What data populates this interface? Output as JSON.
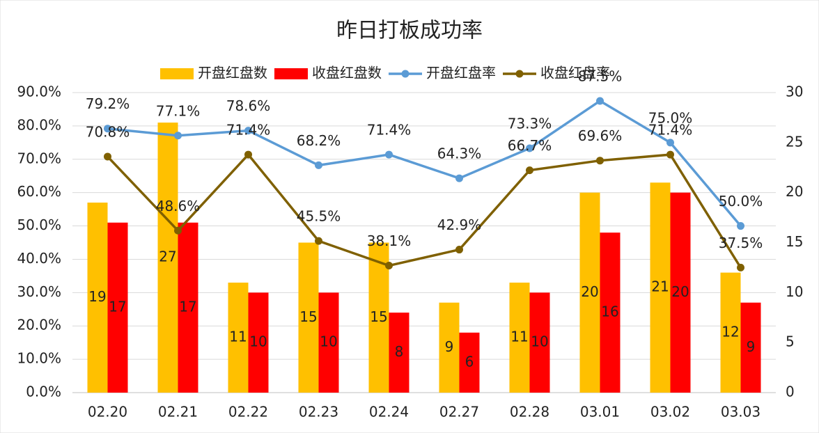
{
  "chart_data": {
    "type": "bar-line",
    "title": "昨日打板成功率",
    "categories": [
      "02.20",
      "02.21",
      "02.22",
      "02.23",
      "02.24",
      "02.27",
      "02.28",
      "03.01",
      "03.02",
      "03.03"
    ],
    "series": [
      {
        "name": "开盘红盘数",
        "type": "bar",
        "axis": "y2",
        "color": "#FFC000",
        "label_color": "#222222",
        "values": [
          19,
          27,
          11,
          15,
          15,
          9,
          11,
          20,
          21,
          12
        ]
      },
      {
        "name": "收盘红盘数",
        "type": "bar",
        "axis": "y2",
        "color": "#FF0000",
        "label_color": "#ffffff",
        "values": [
          17,
          17,
          10,
          10,
          8,
          6,
          10,
          16,
          20,
          9
        ]
      },
      {
        "name": "开盘红盘率",
        "type": "line",
        "color": "#5B9BD5",
        "label_color": "#2E75B6",
        "values": [
          79.2,
          77.1,
          78.6,
          68.2,
          71.4,
          64.3,
          73.3,
          87.5,
          75.0,
          50.0
        ],
        "value_labels": [
          "79.2%",
          "77.1%",
          "78.6%",
          "68.2%",
          "71.4%",
          "64.3%",
          "73.3%",
          "87.5%",
          "75.0%",
          "50.0%"
        ]
      },
      {
        "name": "收盘红盘率",
        "type": "line",
        "color": "#7F6000",
        "label_color": "#8B6A10",
        "values": [
          70.8,
          48.6,
          71.4,
          45.5,
          38.1,
          42.9,
          66.7,
          69.6,
          71.4,
          37.5
        ],
        "value_labels": [
          "70.8%",
          "48.6%",
          "71.4%",
          "45.5%",
          "38.1%",
          "42.9%",
          "66.7%",
          "69.6%",
          "71.4%",
          "37.5%"
        ]
      }
    ],
    "ylim": [
      0,
      90
    ],
    "yticks": [
      {
        "value": 0,
        "label": "0.0%"
      },
      {
        "value": 10,
        "label": "10.0%"
      },
      {
        "value": 20,
        "label": "20.0%"
      },
      {
        "value": 30,
        "label": "30.0%"
      },
      {
        "value": 40,
        "label": "40.0%"
      },
      {
        "value": 50,
        "label": "50.0%"
      },
      {
        "value": 60,
        "label": "60.0%"
      },
      {
        "value": 70,
        "label": "70.0%"
      },
      {
        "value": 80,
        "label": "80.0%"
      },
      {
        "value": 90,
        "label": "90.0%"
      }
    ],
    "y2lim": [
      0,
      30
    ],
    "y2ticks": [
      0,
      5,
      10,
      15,
      20,
      25,
      30
    ],
    "grid": true,
    "legend": "top"
  }
}
